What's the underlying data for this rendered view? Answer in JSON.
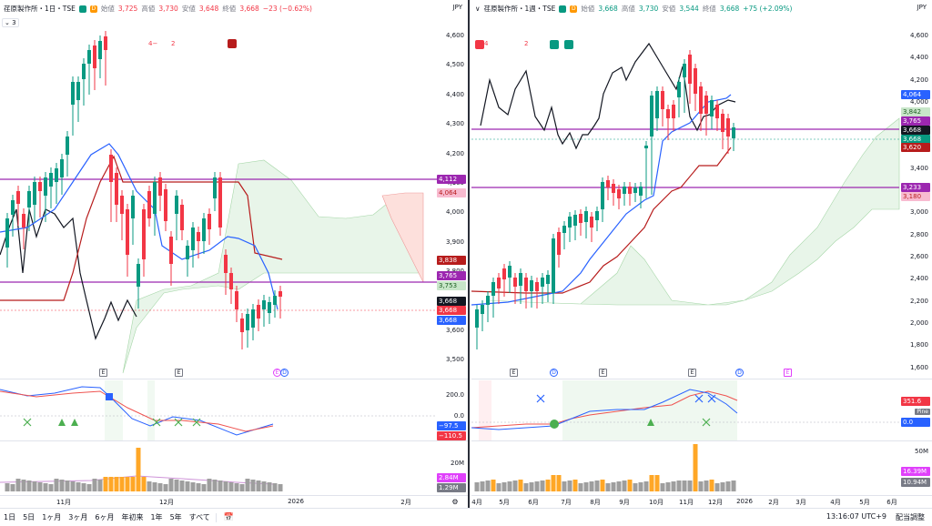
{
  "left": {
    "symbol": "荏原製作所・1日・TSE",
    "open_label": "始値",
    "open": "3,725",
    "high_label": "高値",
    "high": "3,730",
    "low_label": "安値",
    "low": "3,648",
    "close_label": "終値",
    "close": "3,668",
    "change": "−23 (−0.62%)",
    "currency": "JPY",
    "collapse": "3",
    "marker_a": "4",
    "marker_b": "2",
    "price_ticks": [
      "4,600",
      "4,500",
      "4,400",
      "4,300",
      "4,200",
      "4,100",
      "4,000",
      "3,900",
      "3,800",
      "3,700",
      "3,600",
      "3,500"
    ],
    "badges": [
      "4,112",
      "4,064",
      "3,838",
      "3,765",
      "3,753",
      "3,668",
      "3,668",
      "3,668"
    ],
    "osc_ticks": [
      "200.0",
      "0.0"
    ],
    "osc_badges": [
      "−97.5",
      "−110.5"
    ],
    "vol_tick": "20M",
    "vol_badges": [
      "2.84M",
      "1.29M"
    ],
    "time_labels": [
      "11月",
      "12月",
      "2026",
      "2月"
    ],
    "events": [
      "E",
      "E",
      "E",
      "D"
    ]
  },
  "right": {
    "symbol": "荏原製作所・1週・TSE",
    "open_label": "始値",
    "open": "3,668",
    "high_label": "高値",
    "high": "3,730",
    "low_label": "安値",
    "low": "3,544",
    "close_label": "終値",
    "close": "3,668",
    "change": "+75 (+2.09%)",
    "currency": "JPY",
    "marker_a": "4",
    "marker_b": "2",
    "price_ticks": [
      "4,600",
      "4,400",
      "4,200",
      "4,000",
      "3,800",
      "3,600",
      "3,400",
      "3,200",
      "3,000",
      "2,800",
      "2,600",
      "2,400",
      "2,200",
      "2,000",
      "1,800",
      "1,600"
    ],
    "badges": [
      "4,064",
      "3,842",
      "3,765",
      "3,668",
      "3,668",
      "3,620",
      "3,233",
      "3,180"
    ],
    "osc_badges": [
      "351.6",
      "0.0"
    ],
    "pine": "Pine",
    "vol_tick": "50M",
    "vol_badges": [
      "16.39M",
      "10.94M"
    ],
    "time_labels": [
      "4月",
      "5月",
      "6月",
      "7月",
      "8月",
      "9月",
      "10月",
      "11月",
      "12月",
      "2026",
      "2月",
      "3月",
      "4月",
      "5月",
      "6月"
    ],
    "events": [
      "E",
      "D",
      "E",
      "E",
      "D",
      "E"
    ]
  },
  "bottom": {
    "periods": [
      "1日",
      "5日",
      "1ヶ月",
      "3ヶ月",
      "6ヶ月",
      "年初来",
      "1年",
      "5年",
      "すべて"
    ],
    "clock": "13:16:07 UTC+9",
    "adjust": "配当調整"
  },
  "colors": {
    "up": "#089981",
    "down": "#f23645",
    "purple": "#9c27b0",
    "blue": "#2962ff",
    "dark_red": "#b71c1c"
  }
}
